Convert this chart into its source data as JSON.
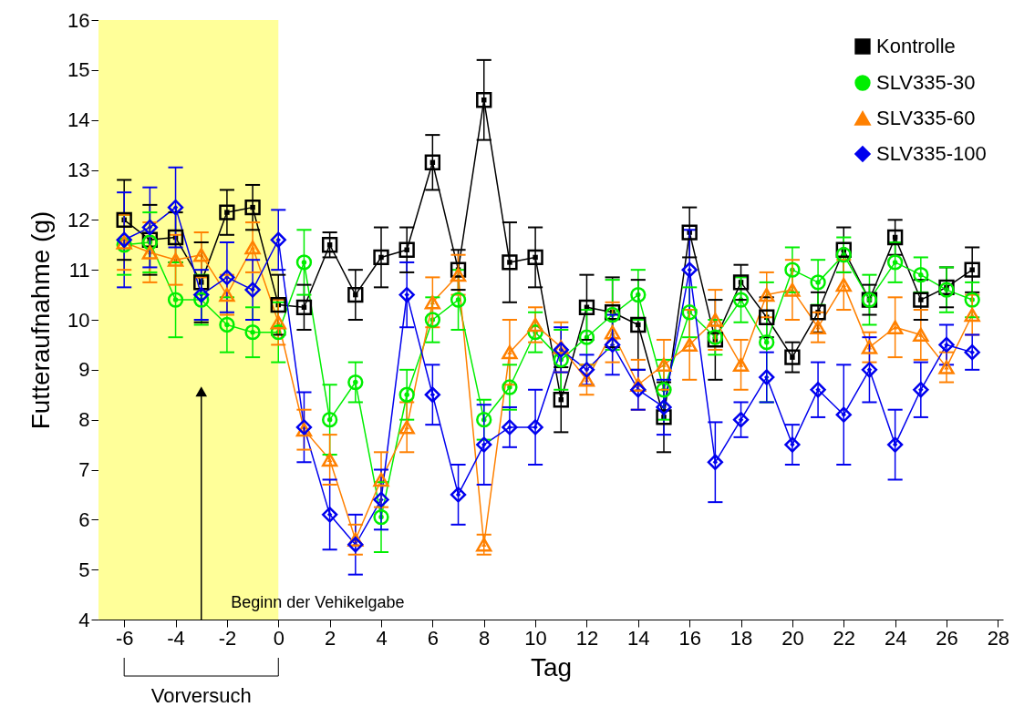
{
  "chart_data": {
    "type": "line",
    "xlabel": "Tag",
    "ylabel": "Futteraufnahme (g)",
    "x": [
      -6,
      -5,
      -4,
      -3,
      -2,
      -1,
      0,
      1,
      2,
      3,
      4,
      5,
      6,
      7,
      8,
      9,
      10,
      11,
      12,
      13,
      14,
      15,
      16,
      17,
      18,
      19,
      20,
      21,
      22,
      23,
      24,
      25,
      26,
      27
    ],
    "xlim": [
      -7,
      28.2
    ],
    "xticks": [
      -6,
      -4,
      -2,
      0,
      2,
      4,
      6,
      8,
      10,
      12,
      14,
      16,
      18,
      20,
      22,
      24,
      26,
      28
    ],
    "ylim": [
      4,
      16
    ],
    "yticks": [
      4,
      5,
      6,
      7,
      8,
      9,
      10,
      11,
      12,
      13,
      14,
      15,
      16
    ],
    "legend": "top right",
    "grid": false,
    "line_style": "solid",
    "bands": [
      {
        "axis": "x",
        "from": -7,
        "to": 0,
        "color": "#ffff99"
      }
    ],
    "annotations": [
      "Beginn der  Vehikelgabe",
      "Vorversuch"
    ],
    "series": [
      {
        "name": "Kontrolle",
        "color": "#000000",
        "marker": "square",
        "values": [
          12.0,
          11.6,
          11.65,
          10.75,
          12.15,
          12.25,
          10.3,
          10.25,
          11.5,
          10.5,
          11.25,
          11.4,
          13.15,
          11.0,
          14.4,
          11.15,
          11.25,
          8.4,
          10.25,
          10.15,
          9.9,
          8.05,
          11.75,
          9.6,
          10.75,
          10.05,
          9.25,
          10.15,
          11.4,
          10.4,
          11.65,
          10.4,
          10.65,
          11.0
        ],
        "errors": [
          0.8,
          0.7,
          0.5,
          0.8,
          0.45,
          0.45,
          0.6,
          0.45,
          0.25,
          0.5,
          0.6,
          0.45,
          0.55,
          0.4,
          0.8,
          0.8,
          0.6,
          0.65,
          0.65,
          0.7,
          0.9,
          0.7,
          0.5,
          0.8,
          0.35,
          0.4,
          0.3,
          0.4,
          0.45,
          0.3,
          0.35,
          0.4,
          0.4,
          0.45
        ]
      },
      {
        "name": "SLV335-30",
        "color": "#00ee00",
        "marker": "circle",
        "values": [
          11.5,
          11.55,
          10.4,
          10.4,
          9.9,
          9.75,
          9.75,
          11.15,
          8.0,
          8.75,
          6.05,
          8.5,
          10.0,
          10.4,
          8.0,
          8.65,
          9.75,
          9.2,
          9.65,
          10.1,
          10.5,
          8.6,
          10.15,
          9.65,
          10.4,
          9.55,
          11.0,
          10.75,
          11.3,
          10.4,
          11.15,
          10.9,
          10.6,
          10.4
        ],
        "errors": [
          0.6,
          0.6,
          0.75,
          0.5,
          0.55,
          0.5,
          0.6,
          0.65,
          0.7,
          0.4,
          0.7,
          0.5,
          0.45,
          0.6,
          0.4,
          0.45,
          0.4,
          0.6,
          0.55,
          0.7,
          0.5,
          0.6,
          0.5,
          0.35,
          0.45,
          1.2,
          0.45,
          0.45,
          0.35,
          0.5,
          0.4,
          0.35,
          0.45,
          0.35
        ]
      },
      {
        "name": "SLV335-60",
        "color": "#ff8000",
        "marker": "triangle",
        "values": [
          11.55,
          11.35,
          11.2,
          11.3,
          10.5,
          11.45,
          9.95,
          7.8,
          7.2,
          5.6,
          6.8,
          7.85,
          10.35,
          10.9,
          5.5,
          9.35,
          9.9,
          9.45,
          8.8,
          9.75,
          8.7,
          9.1,
          9.5,
          10.0,
          9.1,
          10.5,
          10.6,
          9.85,
          10.7,
          9.45,
          9.85,
          9.7,
          9.05,
          10.1
        ],
        "errors": [
          0.55,
          0.6,
          0.5,
          0.45,
          0.4,
          0.5,
          0.45,
          0.4,
          0.5,
          0.3,
          0.55,
          0.5,
          0.5,
          0.4,
          0.2,
          0.65,
          0.35,
          0.5,
          0.3,
          0.6,
          0.5,
          0.5,
          0.7,
          0.6,
          0.5,
          0.45,
          0.6,
          0.3,
          0.5,
          0.3,
          0.6,
          0.5,
          0.3,
          0.4
        ]
      },
      {
        "name": "SLV335-100",
        "color": "#0000ee",
        "marker": "diamond",
        "values": [
          11.6,
          11.85,
          12.25,
          10.5,
          10.85,
          10.6,
          11.6,
          7.85,
          6.1,
          5.5,
          6.4,
          10.5,
          8.5,
          6.5,
          7.5,
          7.85,
          7.85,
          9.4,
          9.0,
          9.5,
          8.6,
          8.25,
          11.0,
          7.15,
          8.0,
          8.85,
          7.5,
          8.6,
          8.1,
          9.0,
          7.5,
          8.6,
          9.5,
          9.35
        ],
        "errors": [
          0.95,
          0.8,
          0.8,
          0.5,
          0.7,
          0.6,
          0.6,
          0.7,
          0.7,
          0.6,
          0.6,
          0.65,
          0.6,
          0.6,
          0.8,
          0.4,
          0.75,
          0.45,
          0.3,
          0.6,
          0.4,
          0.55,
          0.8,
          0.8,
          0.35,
          0.5,
          0.4,
          0.55,
          1.0,
          0.65,
          0.7,
          0.55,
          0.4,
          0.35
        ]
      }
    ]
  }
}
